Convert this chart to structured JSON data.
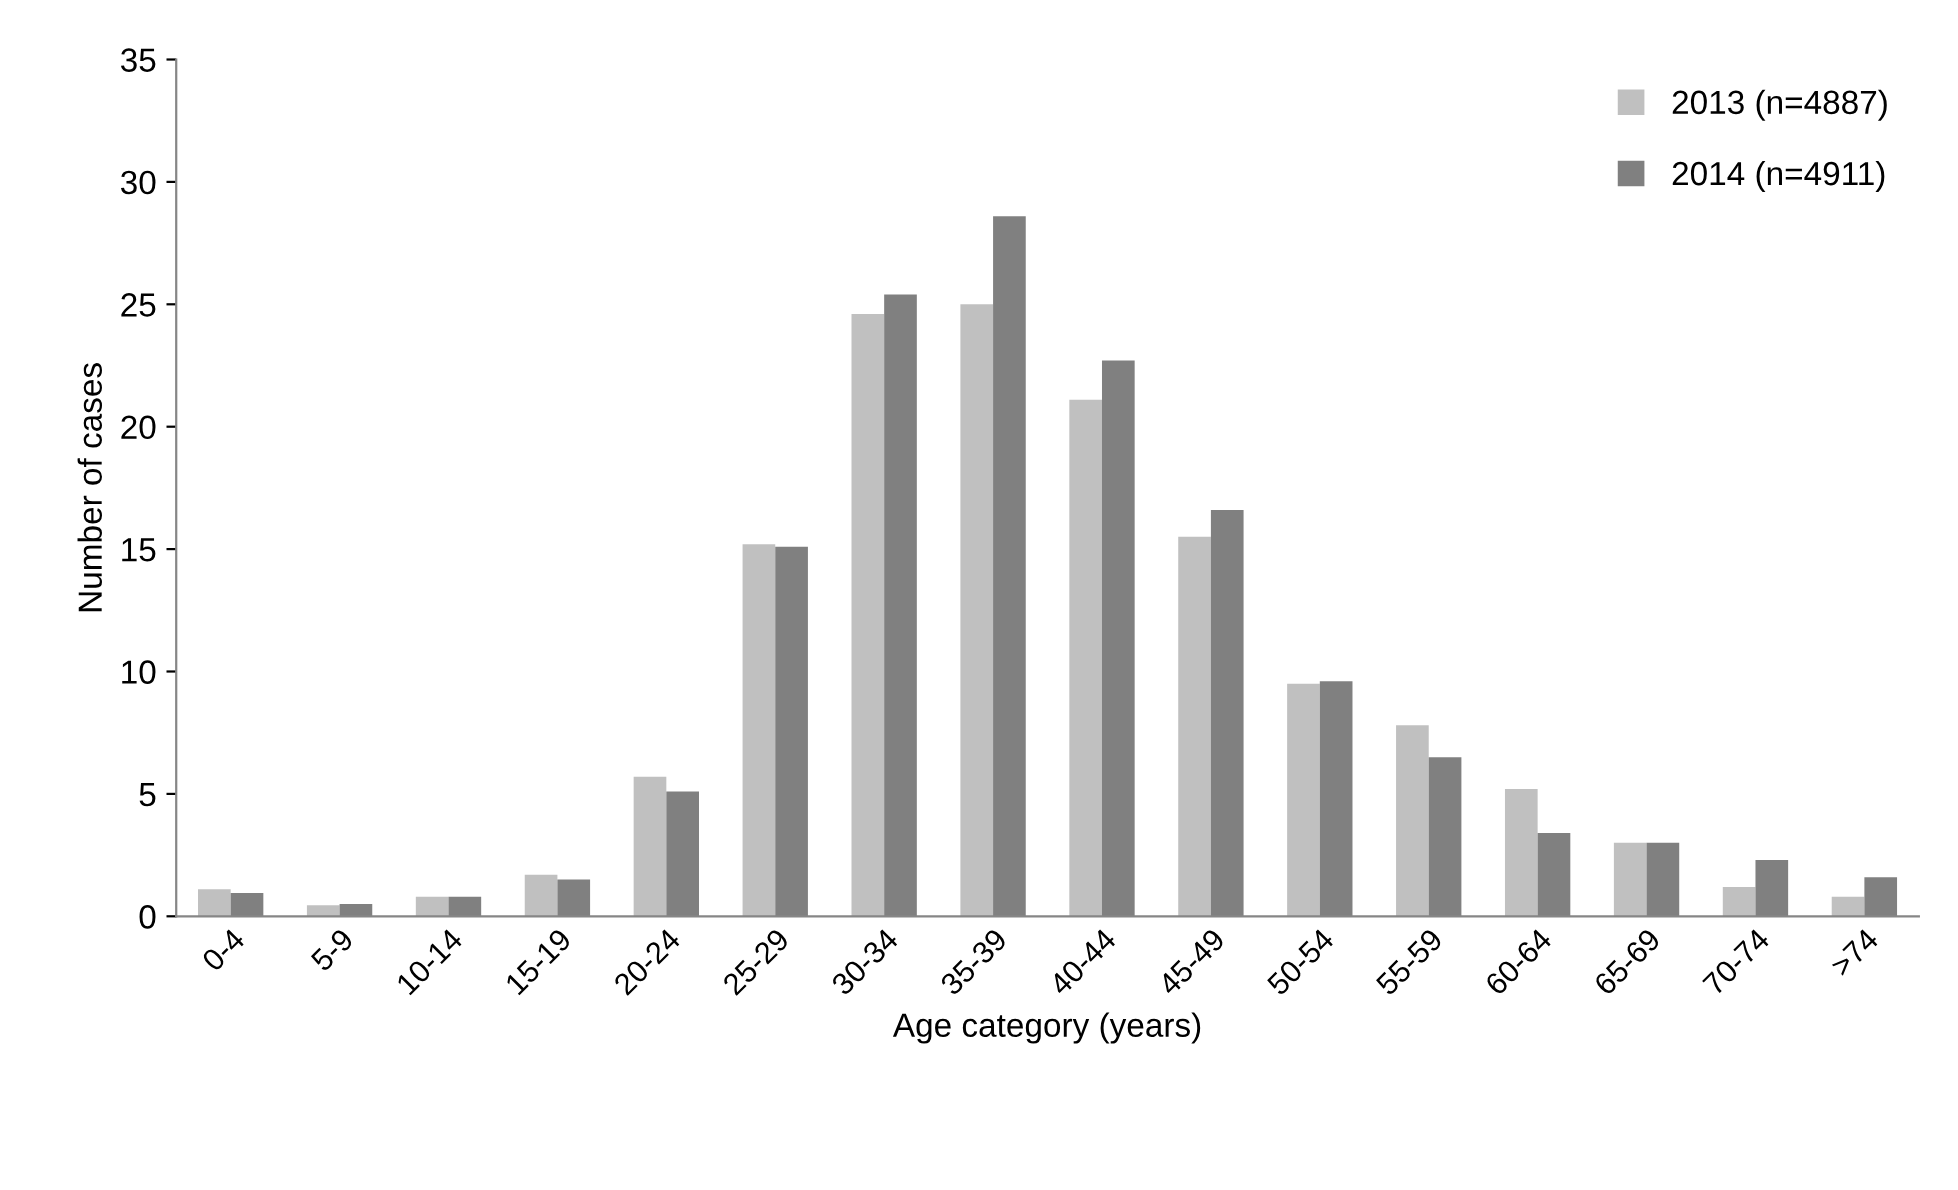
{
  "chart_data": {
    "type": "bar",
    "xlabel": "Age category (years)",
    "ylabel": "Number of cases",
    "categories": [
      "0-4",
      "5-9",
      "10-14",
      "15-19",
      "20-24",
      "25-29",
      "30-34",
      "35-39",
      "40-44",
      "45-49",
      "50-54",
      "55-59",
      "60-64",
      "65-69",
      "70-74",
      ">74"
    ],
    "series": [
      {
        "name": "2013 (n=4887)",
        "color": "#c0c0c0",
        "values": [
          1.1,
          0.45,
          0.8,
          1.7,
          5.7,
          15.2,
          24.6,
          25.0,
          21.1,
          15.5,
          9.5,
          7.8,
          5.2,
          3.0,
          1.2,
          0.8
        ]
      },
      {
        "name": "2014 (n=4911)",
        "color": "#808080",
        "values": [
          0.95,
          0.5,
          0.8,
          1.5,
          5.1,
          15.1,
          25.4,
          28.6,
          22.7,
          16.6,
          9.6,
          6.5,
          3.4,
          3.0,
          2.3,
          1.6
        ]
      }
    ],
    "ylim": [
      0,
      35
    ],
    "yticks": [
      0,
      5,
      10,
      15,
      20,
      25,
      30,
      35
    ],
    "grid": false,
    "legend": "top right"
  }
}
